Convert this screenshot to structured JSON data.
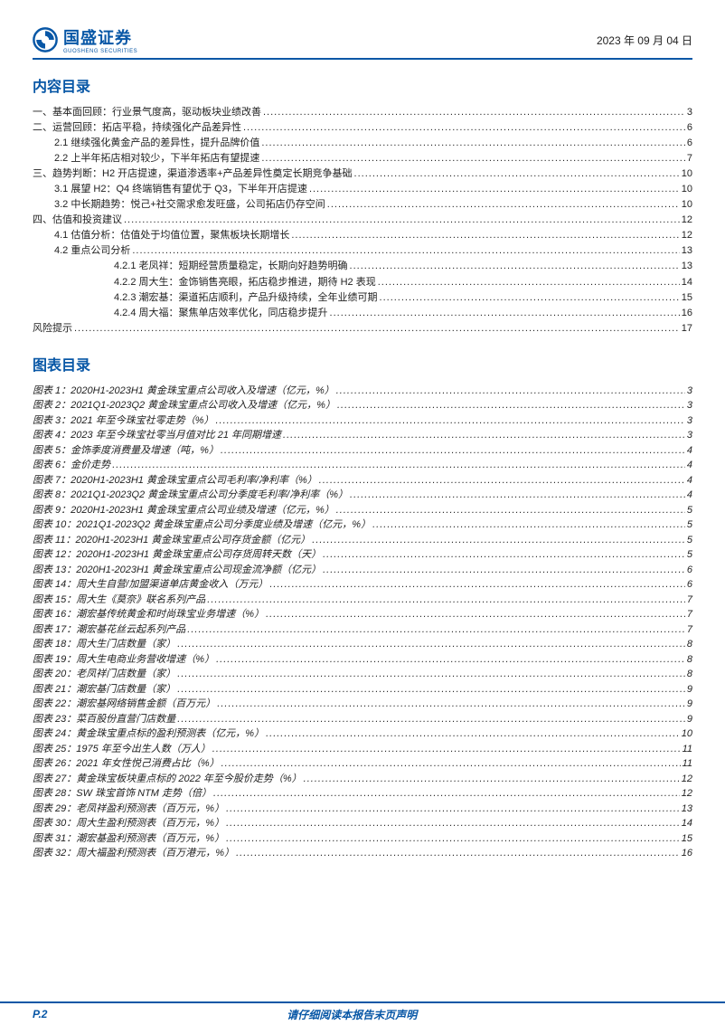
{
  "header": {
    "company_cn": "国盛证券",
    "company_en": "GUOSHENG SECURITIES",
    "date": "2023 年 09 月 04 日",
    "logo_color": "#0857a6"
  },
  "sections": {
    "toc_title": "内容目录",
    "fig_title": "图表目录"
  },
  "toc": [
    {
      "level": 0,
      "label": "一、基本面回顾：行业景气度高，驱动板块业绩改善",
      "page": "3"
    },
    {
      "level": 0,
      "label": "二、运营回顾：拓店平稳，持续强化产品差异性",
      "page": "6"
    },
    {
      "level": 1,
      "label": "2.1 继续强化黄金产品的差异性，提升品牌价值",
      "page": "6"
    },
    {
      "level": 1,
      "label": "2.2 上半年拓店相对较少，下半年拓店有望提速",
      "page": "7"
    },
    {
      "level": 0,
      "label": "三、趋势判断：H2 开店提速，渠道渗透率+产品差异性奠定长期竞争基础",
      "page": "10"
    },
    {
      "level": 1,
      "label": "3.1 展望 H2：Q4 终端销售有望优于 Q3，下半年开店提速",
      "page": "10"
    },
    {
      "level": 1,
      "label": "3.2 中长期趋势：悦己+社交需求愈发旺盛，公司拓店仍存空间",
      "page": "10"
    },
    {
      "level": 0,
      "label": "四、估值和投资建议",
      "page": "12"
    },
    {
      "level": 1,
      "label": "4.1 估值分析：估值处于均值位置，聚焦板块长期增长",
      "page": "12"
    },
    {
      "level": 1,
      "label": "4.2 重点公司分析",
      "page": "13"
    },
    {
      "level": 3,
      "label": "4.2.1 老凤祥：短期经营质量稳定，长期向好趋势明确",
      "page": "13"
    },
    {
      "level": 3,
      "label": "4.2.2 周大生：金饰销售亮眼，拓店稳步推进，期待 H2 表现",
      "page": "14"
    },
    {
      "level": 3,
      "label": "4.2.3 潮宏基：渠道拓店顺利，产品升级持续，全年业绩可期",
      "page": "15"
    },
    {
      "level": 3,
      "label": "4.2.4 周大福：聚焦单店效率优化，同店稳步提升",
      "page": "16"
    },
    {
      "level": 0,
      "label": "风险提示",
      "page": "17"
    }
  ],
  "figures": [
    {
      "label": "图表 1：2020H1-2023H1 黄金珠宝重点公司收入及增速（亿元，%）",
      "page": "3"
    },
    {
      "label": "图表 2：2021Q1-2023Q2 黄金珠宝重点公司收入及增速（亿元，%）",
      "page": "3"
    },
    {
      "label": "图表 3：2021 年至今珠宝社零走势（%）",
      "page": "3"
    },
    {
      "label": "图表 4：2023 年至今珠宝社零当月值对比 21 年同期增速",
      "page": "3"
    },
    {
      "label": "图表 5：金饰季度消费量及增速（吨，%）",
      "page": "4"
    },
    {
      "label": "图表 6：金价走势",
      "page": "4"
    },
    {
      "label": "图表 7：2020H1-2023H1 黄金珠宝重点公司毛利率/净利率（%）",
      "page": "4"
    },
    {
      "label": "图表 8：2021Q1-2023Q2 黄金珠宝重点公司分季度毛利率/净利率（%）",
      "page": "4"
    },
    {
      "label": "图表 9：2020H1-2023H1 黄金珠宝重点公司业绩及增速（亿元，%）",
      "page": "5"
    },
    {
      "label": "图表 10：2021Q1-2023Q2 黄金珠宝重点公司分季度业绩及增速（亿元，%）",
      "page": "5"
    },
    {
      "label": "图表 11：2020H1-2023H1 黄金珠宝重点公司存货金额（亿元）",
      "page": "5"
    },
    {
      "label": "图表 12：2020H1-2023H1 黄金珠宝重点公司存货周转天数（天）",
      "page": "5"
    },
    {
      "label": "图表 13：2020H1-2023H1 黄金珠宝重点公司现金流净额（亿元）",
      "page": "6"
    },
    {
      "label": "图表 14：周大生自营/加盟渠道单店黄金收入（万元）",
      "page": "6"
    },
    {
      "label": "图表 15：周大生《莫奈》联名系列产品",
      "page": "7"
    },
    {
      "label": "图表 16：潮宏基传统黄金和时尚珠宝业务增速（%）",
      "page": "7"
    },
    {
      "label": "图表 17：潮宏基花丝云起系列产品",
      "page": "7"
    },
    {
      "label": "图表 18：周大生门店数量（家）",
      "page": "8"
    },
    {
      "label": "图表 19：周大生电商业务营收增速（%）",
      "page": "8"
    },
    {
      "label": "图表 20：老凤祥门店数量（家）",
      "page": "8"
    },
    {
      "label": "图表 21：潮宏基门店数量（家）",
      "page": "9"
    },
    {
      "label": "图表 22：潮宏基网络销售金额（百万元）",
      "page": "9"
    },
    {
      "label": "图表 23：菜百股份直营门店数量",
      "page": "9"
    },
    {
      "label": "图表 24：黄金珠宝重点标的盈利预测表（亿元，%）",
      "page": "10"
    },
    {
      "label": "图表 25：1975 年至今出生人数（万人）",
      "page": "11"
    },
    {
      "label": "图表 26：2021 年女性悦己消费占比（%）",
      "page": "11"
    },
    {
      "label": "图表 27：黄金珠宝板块重点标的 2022 年至今股价走势（%）",
      "page": "12"
    },
    {
      "label": "图表 28：SW 珠宝首饰 NTM 走势（倍）",
      "page": "12"
    },
    {
      "label": "图表 29：老凤祥盈利预测表（百万元，%）",
      "page": "13"
    },
    {
      "label": "图表 30：周大生盈利预测表（百万元，%）",
      "page": "14"
    },
    {
      "label": "图表 31：潮宏基盈利预测表（百万元，%）",
      "page": "15"
    },
    {
      "label": "图表 32：周大福盈利预测表（百万港元，%）",
      "page": "16"
    }
  ],
  "footer": {
    "page_label": "P.2",
    "disclaimer": "请仔细阅读本报告末页声明"
  },
  "colors": {
    "brand": "#0857a6",
    "text": "#222222",
    "bg": "#ffffff"
  }
}
